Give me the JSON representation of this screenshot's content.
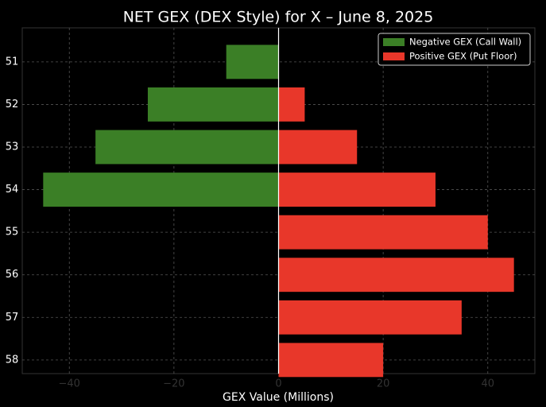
{
  "chart_data": {
    "type": "hbar",
    "title": "NET GEX (DEX Style) for X – June 8, 2025",
    "x_label": "GEX Value (Millions)",
    "categories": [
      "51",
      "52",
      "53",
      "54",
      "55",
      "56",
      "57",
      "58"
    ],
    "series": [
      {
        "name": "Negative GEX (Call Wall)",
        "color": "#3b7f26",
        "values": [
          -10,
          -25,
          -35,
          -45,
          0,
          0,
          0,
          0
        ]
      },
      {
        "name": "Positive GEX (Put Floor)",
        "color": "#e8372a",
        "values": [
          0,
          5,
          15,
          30,
          40,
          45,
          35,
          20
        ]
      }
    ],
    "xlim": [
      -49,
      49
    ],
    "xticks": [
      {
        "value": -40,
        "label": "−40"
      },
      {
        "value": -20,
        "label": "−20"
      },
      0,
      20,
      40
    ],
    "grid": true,
    "legend": "upper right"
  }
}
